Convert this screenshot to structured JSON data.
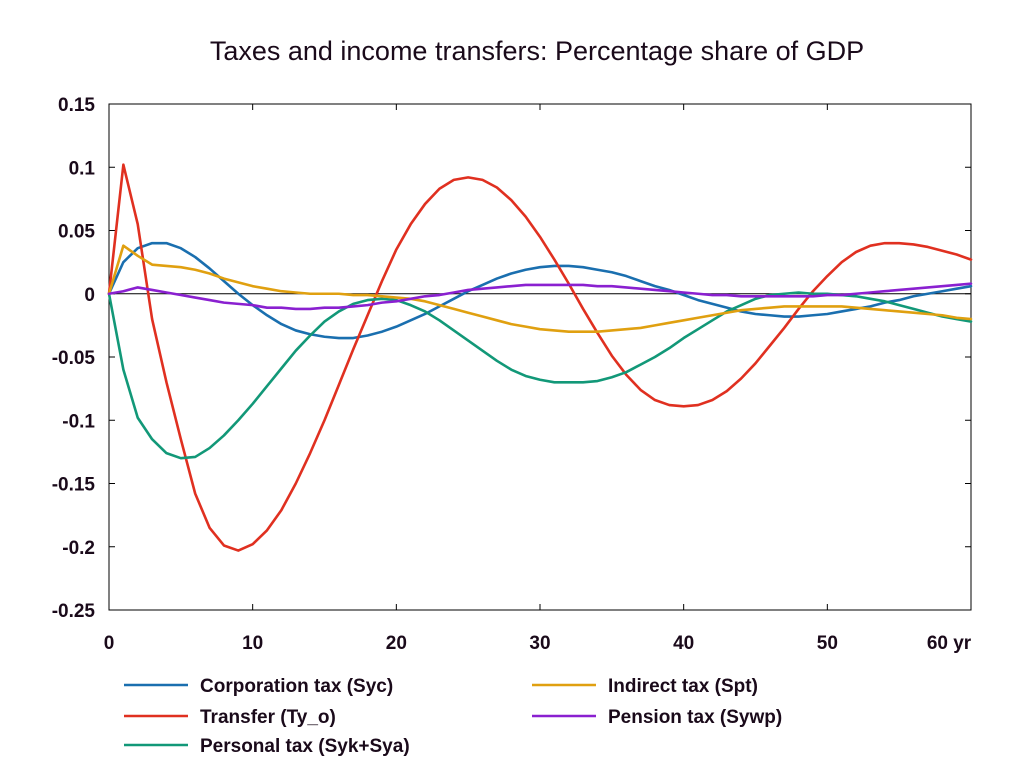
{
  "chart_data": {
    "type": "line",
    "title": "Taxes and income transfers: Percentage share of GDP",
    "xlabel": "",
    "ylabel": "",
    "x_tick_labels": [
      "0",
      "10",
      "20",
      "30",
      "40",
      "50",
      "60 yr"
    ],
    "x_ticks": [
      0,
      10,
      20,
      30,
      40,
      50,
      60
    ],
    "y_tick_labels": [
      "0.15",
      "0.1",
      "0.05",
      "0",
      "-0.05",
      "-0.1",
      "-0.15",
      "-0.2",
      "-0.25"
    ],
    "y_ticks": [
      0.15,
      0.1,
      0.05,
      0,
      -0.05,
      -0.1,
      -0.15,
      -0.2,
      -0.25
    ],
    "xlim": [
      0,
      60
    ],
    "ylim": [
      -0.25,
      0.15
    ],
    "grid": false,
    "zero_line": true,
    "legend_position": "bottom",
    "series": [
      {
        "name": "Corporation tax (Syc)",
        "color": "#1a6faf",
        "x": [
          0,
          1,
          2,
          3,
          4,
          5,
          6,
          7,
          8,
          9,
          10,
          11,
          12,
          13,
          14,
          15,
          16,
          17,
          18,
          19,
          20,
          21,
          22,
          23,
          24,
          25,
          26,
          27,
          28,
          29,
          30,
          31,
          32,
          33,
          34,
          35,
          36,
          37,
          38,
          39,
          40,
          41,
          42,
          43,
          44,
          45,
          46,
          47,
          48,
          49,
          50,
          51,
          52,
          53,
          54,
          55,
          56,
          57,
          58,
          59,
          60
        ],
        "y": [
          0,
          0.025,
          0.036,
          0.04,
          0.04,
          0.036,
          0.029,
          0.02,
          0.01,
          0,
          -0.009,
          -0.017,
          -0.024,
          -0.029,
          -0.032,
          -0.034,
          -0.035,
          -0.035,
          -0.033,
          -0.03,
          -0.026,
          -0.021,
          -0.016,
          -0.01,
          -0.004,
          0.002,
          0.007,
          0.012,
          0.016,
          0.019,
          0.021,
          0.022,
          0.022,
          0.021,
          0.019,
          0.017,
          0.014,
          0.01,
          0.006,
          0.003,
          -0.001,
          -0.005,
          -0.008,
          -0.011,
          -0.014,
          -0.016,
          -0.017,
          -0.018,
          -0.018,
          -0.017,
          -0.016,
          -0.014,
          -0.012,
          -0.01,
          -0.007,
          -0.005,
          -0.002,
          0,
          0.002,
          0.004,
          0.006
        ]
      },
      {
        "name": "Transfer (Ty_o)",
        "color": "#e03020",
        "x": [
          0,
          1,
          2,
          3,
          4,
          5,
          6,
          7,
          8,
          9,
          10,
          11,
          12,
          13,
          14,
          15,
          16,
          17,
          18,
          19,
          20,
          21,
          22,
          23,
          24,
          25,
          26,
          27,
          28,
          29,
          30,
          31,
          32,
          33,
          34,
          35,
          36,
          37,
          38,
          39,
          40,
          41,
          42,
          43,
          44,
          45,
          46,
          47,
          48,
          49,
          50,
          51,
          52,
          53,
          54,
          55,
          56,
          57,
          58,
          59,
          60
        ],
        "y": [
          0,
          0.102,
          0.055,
          -0.02,
          -0.07,
          -0.115,
          -0.158,
          -0.185,
          -0.199,
          -0.203,
          -0.198,
          -0.187,
          -0.171,
          -0.15,
          -0.126,
          -0.1,
          -0.072,
          -0.044,
          -0.017,
          0.01,
          0.035,
          0.055,
          0.071,
          0.083,
          0.09,
          0.092,
          0.09,
          0.084,
          0.074,
          0.061,
          0.045,
          0.027,
          0.008,
          -0.012,
          -0.031,
          -0.049,
          -0.064,
          -0.076,
          -0.084,
          -0.088,
          -0.089,
          -0.088,
          -0.084,
          -0.077,
          -0.067,
          -0.055,
          -0.041,
          -0.027,
          -0.012,
          0.002,
          0.014,
          0.025,
          0.033,
          0.038,
          0.04,
          0.04,
          0.039,
          0.037,
          0.034,
          0.031,
          0.027
        ]
      },
      {
        "name": "Personal tax (Syk+Sya)",
        "color": "#129878",
        "x": [
          0,
          1,
          2,
          3,
          4,
          5,
          6,
          7,
          8,
          9,
          10,
          11,
          12,
          13,
          14,
          15,
          16,
          17,
          18,
          19,
          20,
          21,
          22,
          23,
          24,
          25,
          26,
          27,
          28,
          29,
          30,
          31,
          32,
          33,
          34,
          35,
          36,
          37,
          38,
          39,
          40,
          41,
          42,
          43,
          44,
          45,
          46,
          47,
          48,
          49,
          50,
          51,
          52,
          53,
          54,
          55,
          56,
          57,
          58,
          59,
          60
        ],
        "y": [
          0,
          -0.06,
          -0.098,
          -0.115,
          -0.126,
          -0.13,
          -0.129,
          -0.122,
          -0.112,
          -0.1,
          -0.087,
          -0.073,
          -0.059,
          -0.045,
          -0.033,
          -0.022,
          -0.014,
          -0.008,
          -0.005,
          -0.004,
          -0.005,
          -0.009,
          -0.014,
          -0.021,
          -0.029,
          -0.037,
          -0.045,
          -0.053,
          -0.06,
          -0.065,
          -0.068,
          -0.07,
          -0.07,
          -0.07,
          -0.069,
          -0.066,
          -0.062,
          -0.056,
          -0.05,
          -0.043,
          -0.035,
          -0.028,
          -0.021,
          -0.014,
          -0.009,
          -0.004,
          -0.001,
          0,
          0.001,
          0,
          0,
          -0.001,
          -0.002,
          -0.004,
          -0.006,
          -0.009,
          -0.012,
          -0.015,
          -0.018,
          -0.02,
          -0.022
        ]
      },
      {
        "name": "Indirect tax (Spt)",
        "color": "#e0a010",
        "x": [
          0,
          1,
          2,
          3,
          4,
          5,
          6,
          7,
          8,
          9,
          10,
          11,
          12,
          13,
          14,
          15,
          16,
          17,
          18,
          19,
          20,
          21,
          22,
          23,
          24,
          25,
          26,
          27,
          28,
          29,
          30,
          31,
          32,
          33,
          34,
          35,
          36,
          37,
          38,
          39,
          40,
          41,
          42,
          43,
          44,
          45,
          46,
          47,
          48,
          49,
          50,
          51,
          52,
          53,
          54,
          55,
          56,
          57,
          58,
          59,
          60
        ],
        "y": [
          0,
          0.038,
          0.03,
          0.023,
          0.022,
          0.021,
          0.019,
          0.016,
          0.012,
          0.009,
          0.006,
          0.004,
          0.002,
          0.001,
          0,
          0,
          0,
          -0.001,
          -0.001,
          -0.002,
          -0.003,
          -0.004,
          -0.006,
          -0.009,
          -0.012,
          -0.015,
          -0.018,
          -0.021,
          -0.024,
          -0.026,
          -0.028,
          -0.029,
          -0.03,
          -0.03,
          -0.03,
          -0.029,
          -0.028,
          -0.027,
          -0.025,
          -0.023,
          -0.021,
          -0.019,
          -0.017,
          -0.015,
          -0.013,
          -0.012,
          -0.011,
          -0.01,
          -0.01,
          -0.01,
          -0.01,
          -0.01,
          -0.011,
          -0.012,
          -0.013,
          -0.014,
          -0.015,
          -0.016,
          -0.017,
          -0.019,
          -0.02
        ]
      },
      {
        "name": "Pension tax (Sywp)",
        "color": "#8a20d0",
        "x": [
          0,
          1,
          2,
          3,
          4,
          5,
          6,
          7,
          8,
          9,
          10,
          11,
          12,
          13,
          14,
          15,
          16,
          17,
          18,
          19,
          20,
          21,
          22,
          23,
          24,
          25,
          26,
          27,
          28,
          29,
          30,
          31,
          32,
          33,
          34,
          35,
          36,
          37,
          38,
          39,
          40,
          41,
          42,
          43,
          44,
          45,
          46,
          47,
          48,
          49,
          50,
          51,
          52,
          53,
          54,
          55,
          56,
          57,
          58,
          59,
          60
        ],
        "y": [
          0,
          0.002,
          0.005,
          0.003,
          0.001,
          -0.001,
          -0.003,
          -0.005,
          -0.007,
          -0.008,
          -0.009,
          -0.011,
          -0.011,
          -0.012,
          -0.012,
          -0.011,
          -0.011,
          -0.01,
          -0.009,
          -0.007,
          -0.006,
          -0.004,
          -0.002,
          -0.001,
          0.001,
          0.003,
          0.004,
          0.005,
          0.006,
          0.007,
          0.007,
          0.007,
          0.007,
          0.007,
          0.006,
          0.006,
          0.005,
          0.004,
          0.003,
          0.002,
          0.001,
          0,
          -0.001,
          -0.001,
          -0.002,
          -0.002,
          -0.002,
          -0.002,
          -0.002,
          -0.002,
          -0.001,
          -0.001,
          0,
          0.001,
          0.002,
          0.003,
          0.004,
          0.005,
          0.006,
          0.007,
          0.008
        ]
      }
    ]
  }
}
